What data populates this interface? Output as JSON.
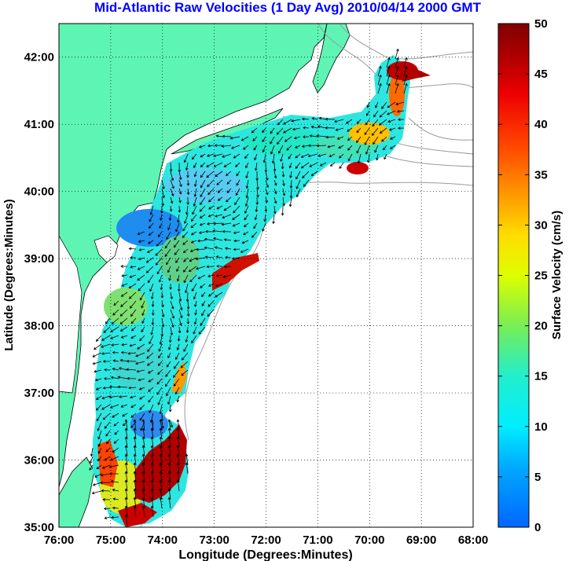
{
  "title": "Mid-Atlantic Raw Velocities (1 Day Avg) 2010/04/14 2000 GMT",
  "map": {
    "xlabel": "Longitude (Degrees:Minutes)",
    "ylabel": "Latitude (Degrees:Minutes)",
    "lon_range": [
      -76,
      -68
    ],
    "lat_range": [
      35,
      42.5
    ],
    "lon_ticks": [
      "76:00",
      "75:00",
      "74:00",
      "73:00",
      "72:00",
      "71:00",
      "70:00",
      "69:00",
      "68:00"
    ],
    "lat_ticks": [
      "35:00",
      "36:00",
      "37:00",
      "38:00",
      "39:00",
      "40:00",
      "41:00",
      "42:00"
    ],
    "grid": "dotted",
    "land_color": "#5ef5b4",
    "bathymetry_color": "#9a9a9a"
  },
  "colorbar": {
    "label": "Surface Velocity (cm/s)",
    "min": 0,
    "max": 50,
    "ticks": [
      "0",
      "5",
      "10",
      "15",
      "20",
      "25",
      "30",
      "35",
      "40",
      "45",
      "50"
    ],
    "colors": [
      "#0044ff",
      "#00ccff",
      "#22eecc",
      "#99ee44",
      "#ffff00",
      "#ffaa00",
      "#ff3300",
      "#cc0000",
      "#880000"
    ]
  }
}
